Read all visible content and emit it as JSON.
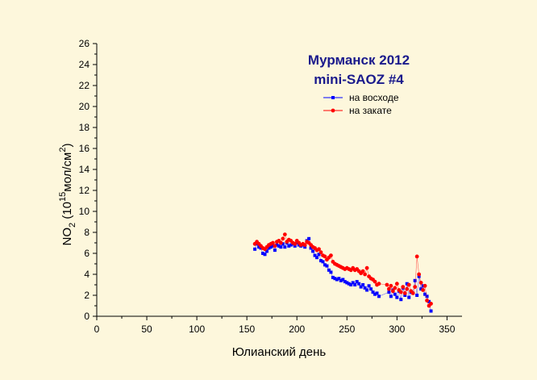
{
  "chart_data": {
    "type": "scatter",
    "title_lines": [
      "Мурманск 2012",
      "mini-SAOZ #4"
    ],
    "xlabel": "Юлианский день",
    "ylabel": {
      "base": "NO",
      "sub1": "2",
      "mid": " (10",
      "sup": "15",
      "unit": "мол/см",
      "sup2": "2",
      "close": ")"
    },
    "xlim": [
      0,
      365
    ],
    "ylim": [
      0,
      26
    ],
    "x_ticks": [
      0,
      50,
      100,
      150,
      200,
      250,
      300,
      350
    ],
    "y_ticks": [
      0,
      2,
      4,
      6,
      8,
      10,
      12,
      14,
      16,
      18,
      20,
      22,
      24,
      26
    ],
    "x_tick_labels": [
      "0",
      "50",
      "100",
      "150",
      "200",
      "250",
      "300",
      "350"
    ],
    "y_tick_labels": [
      "0",
      "2",
      "4",
      "6",
      "8",
      "10",
      "12",
      "14",
      "16",
      "18",
      "20",
      "22",
      "24",
      "26"
    ],
    "legend_position": "top-right",
    "grid": false,
    "series": [
      {
        "name": "на восходе",
        "color": "#0000ff",
        "marker": "square",
        "x": [
          158,
          160,
          162,
          164,
          166,
          168,
          170,
          172,
          174,
          176,
          178,
          180,
          182,
          184,
          186,
          188,
          190,
          192,
          194,
          196,
          198,
          200,
          202,
          204,
          206,
          208,
          210,
          212,
          214,
          216,
          218,
          220,
          222,
          224,
          226,
          228,
          230,
          232,
          234,
          236,
          238,
          240,
          242,
          244,
          246,
          248,
          250,
          252,
          254,
          256,
          258,
          260,
          262,
          264,
          266,
          268,
          270,
          272,
          274,
          276,
          278,
          280,
          282,
          292,
          294,
          296,
          298,
          300,
          302,
          304,
          306,
          308,
          310,
          312,
          314,
          316,
          318,
          320,
          322,
          324,
          326,
          328,
          330,
          332,
          334
        ],
        "y": [
          6.4,
          6.9,
          6.6,
          6.5,
          6.0,
          5.9,
          6.2,
          6.5,
          6.6,
          6.7,
          6.3,
          6.8,
          6.7,
          6.6,
          6.9,
          6.6,
          7.0,
          6.7,
          6.8,
          6.9,
          6.7,
          7.0,
          6.8,
          6.7,
          6.8,
          6.6,
          7.2,
          7.4,
          6.5,
          6.2,
          5.8,
          5.6,
          5.9,
          5.3,
          5.2,
          4.9,
          4.8,
          4.4,
          4.2,
          3.7,
          3.6,
          3.5,
          3.6,
          3.4,
          3.5,
          3.3,
          3.2,
          3.1,
          3.0,
          3.2,
          3.0,
          3.3,
          3.1,
          2.8,
          3.0,
          2.7,
          2.5,
          2.9,
          2.6,
          2.3,
          2.1,
          2.2,
          1.9,
          2.3,
          1.9,
          2.5,
          2.1,
          1.8,
          2.4,
          1.6,
          2.7,
          2.0,
          3.1,
          1.8,
          2.3,
          2.2,
          3.4,
          2.0,
          3.8,
          2.6,
          2.9,
          2.1,
          1.9,
          1.4,
          0.5
        ]
      },
      {
        "name": "на закате",
        "color": "#ff0000",
        "marker": "circle",
        "x": [
          158,
          160,
          162,
          164,
          166,
          168,
          170,
          172,
          174,
          176,
          178,
          180,
          182,
          184,
          186,
          188,
          190,
          192,
          194,
          196,
          198,
          200,
          202,
          204,
          206,
          208,
          210,
          212,
          214,
          216,
          218,
          220,
          222,
          224,
          226,
          228,
          230,
          232,
          234,
          236,
          238,
          240,
          242,
          244,
          246,
          248,
          250,
          252,
          254,
          256,
          258,
          260,
          262,
          264,
          266,
          268,
          270,
          272,
          274,
          276,
          278,
          280,
          282,
          290,
          292,
          294,
          296,
          298,
          300,
          302,
          304,
          306,
          308,
          310,
          312,
          314,
          316,
          318,
          320,
          322,
          324,
          326,
          328,
          330,
          332,
          334
        ],
        "y": [
          6.9,
          7.1,
          6.9,
          6.7,
          6.5,
          6.4,
          6.6,
          6.8,
          6.9,
          7.0,
          6.7,
          7.1,
          7.2,
          7.0,
          7.4,
          7.8,
          7.1,
          7.3,
          7.2,
          7.0,
          6.9,
          7.2,
          7.0,
          6.8,
          6.9,
          6.8,
          7.1,
          7.0,
          6.8,
          6.6,
          6.5,
          6.3,
          6.4,
          6.1,
          5.8,
          5.7,
          5.4,
          5.6,
          5.8,
          5.2,
          5.0,
          4.9,
          4.8,
          4.7,
          4.6,
          4.5,
          4.6,
          4.5,
          4.4,
          4.6,
          4.4,
          4.5,
          4.3,
          4.1,
          4.3,
          4.0,
          4.6,
          3.8,
          3.6,
          3.5,
          3.3,
          3.0,
          3.1,
          3.0,
          2.6,
          2.9,
          2.4,
          2.7,
          3.1,
          2.5,
          2.3,
          2.8,
          2.2,
          2.6,
          3.0,
          2.4,
          2.2,
          2.8,
          5.7,
          4.0,
          3.2,
          2.5,
          2.9,
          1.5,
          1.0,
          1.2
        ]
      }
    ]
  }
}
